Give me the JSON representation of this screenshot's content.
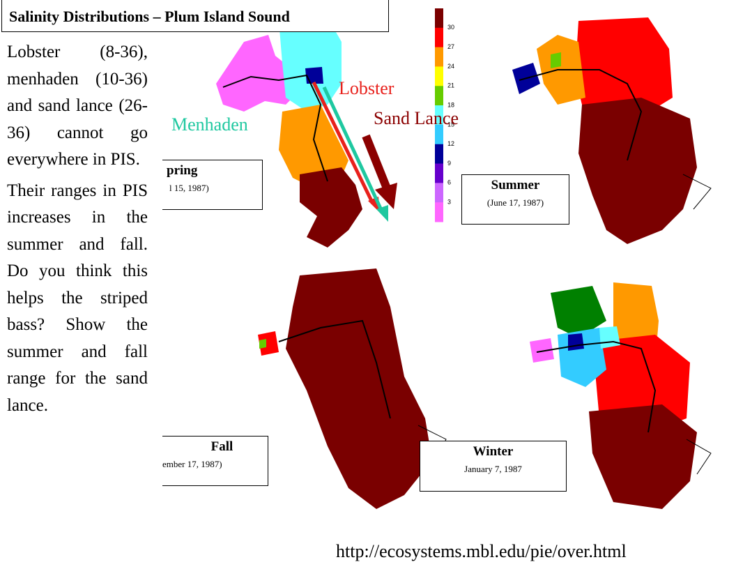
{
  "title": "Salinity Distributions – Plum Island Sound",
  "body": {
    "paragraphs": [
      "Lobster (8-36), menhaden (10-36) and sand lance (26-36) cannot go everywhere in PIS.",
      "Their ranges in PIS increases in the summer and fall. Do you think this helps the striped bass? Show the summer and fall range for the sand lance."
    ]
  },
  "species_labels": [
    {
      "text": "Lobster",
      "color": "#e8211c"
    },
    {
      "text": "Sand Lance",
      "color": "#8b0000"
    },
    {
      "text": "Menhaden",
      "color": "#1fc8a0"
    }
  ],
  "salinity_scale": {
    "labels": [
      30,
      27,
      24,
      21,
      18,
      15,
      12,
      9,
      6,
      3
    ],
    "colors": [
      "#7a0000",
      "#ff0000",
      "#ff9900",
      "#ffff00",
      "#66cc00",
      "#66ffff",
      "#33ccff",
      "#000099",
      "#6600cc",
      "#cc66ff",
      "#ff66ff"
    ]
  },
  "maps": [
    {
      "season": "pring",
      "date": "l 15, 1987)"
    },
    {
      "season": "Summer",
      "date": "(June 17, 1987)"
    },
    {
      "season": "Fall",
      "date": "ember 17, 1987)"
    },
    {
      "season": "Winter",
      "date": "January 7, 1987"
    }
  ],
  "url": "http://ecosystems.mbl.edu/pie/over.html"
}
